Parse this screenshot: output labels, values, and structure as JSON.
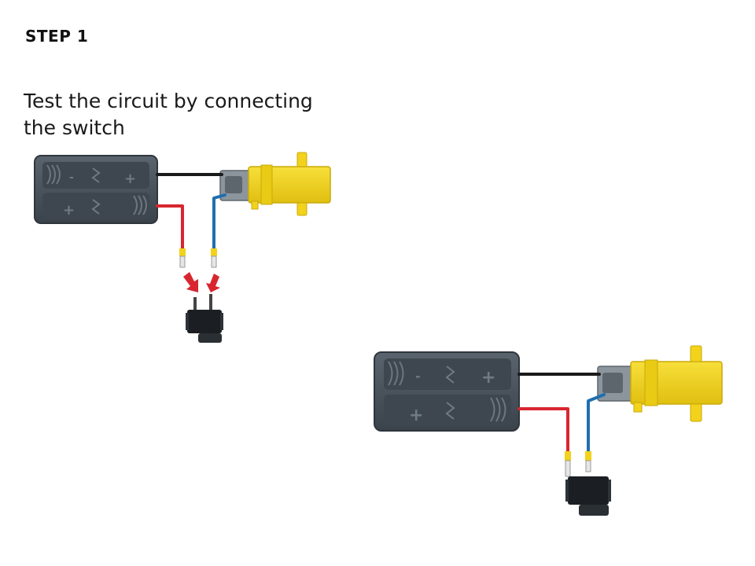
{
  "step": {
    "title": "STEP 1"
  },
  "instruction": {
    "text": "Test the circuit by connecting the switch"
  },
  "battery_marks": {
    "plus": "+",
    "minus": "-"
  },
  "colors": {
    "battery_body": "#4b5560",
    "battery_dark": "#2f363d",
    "motor_yellow": "#f2d21b",
    "motor_yellow_dark": "#d9b80e",
    "motor_grey": "#8c959c",
    "wire_black": "#1a1a1a",
    "wire_red": "#d8262f",
    "wire_blue": "#1f6fb0",
    "arrow_red": "#d8262f",
    "switch_black": "#1b1f23"
  }
}
